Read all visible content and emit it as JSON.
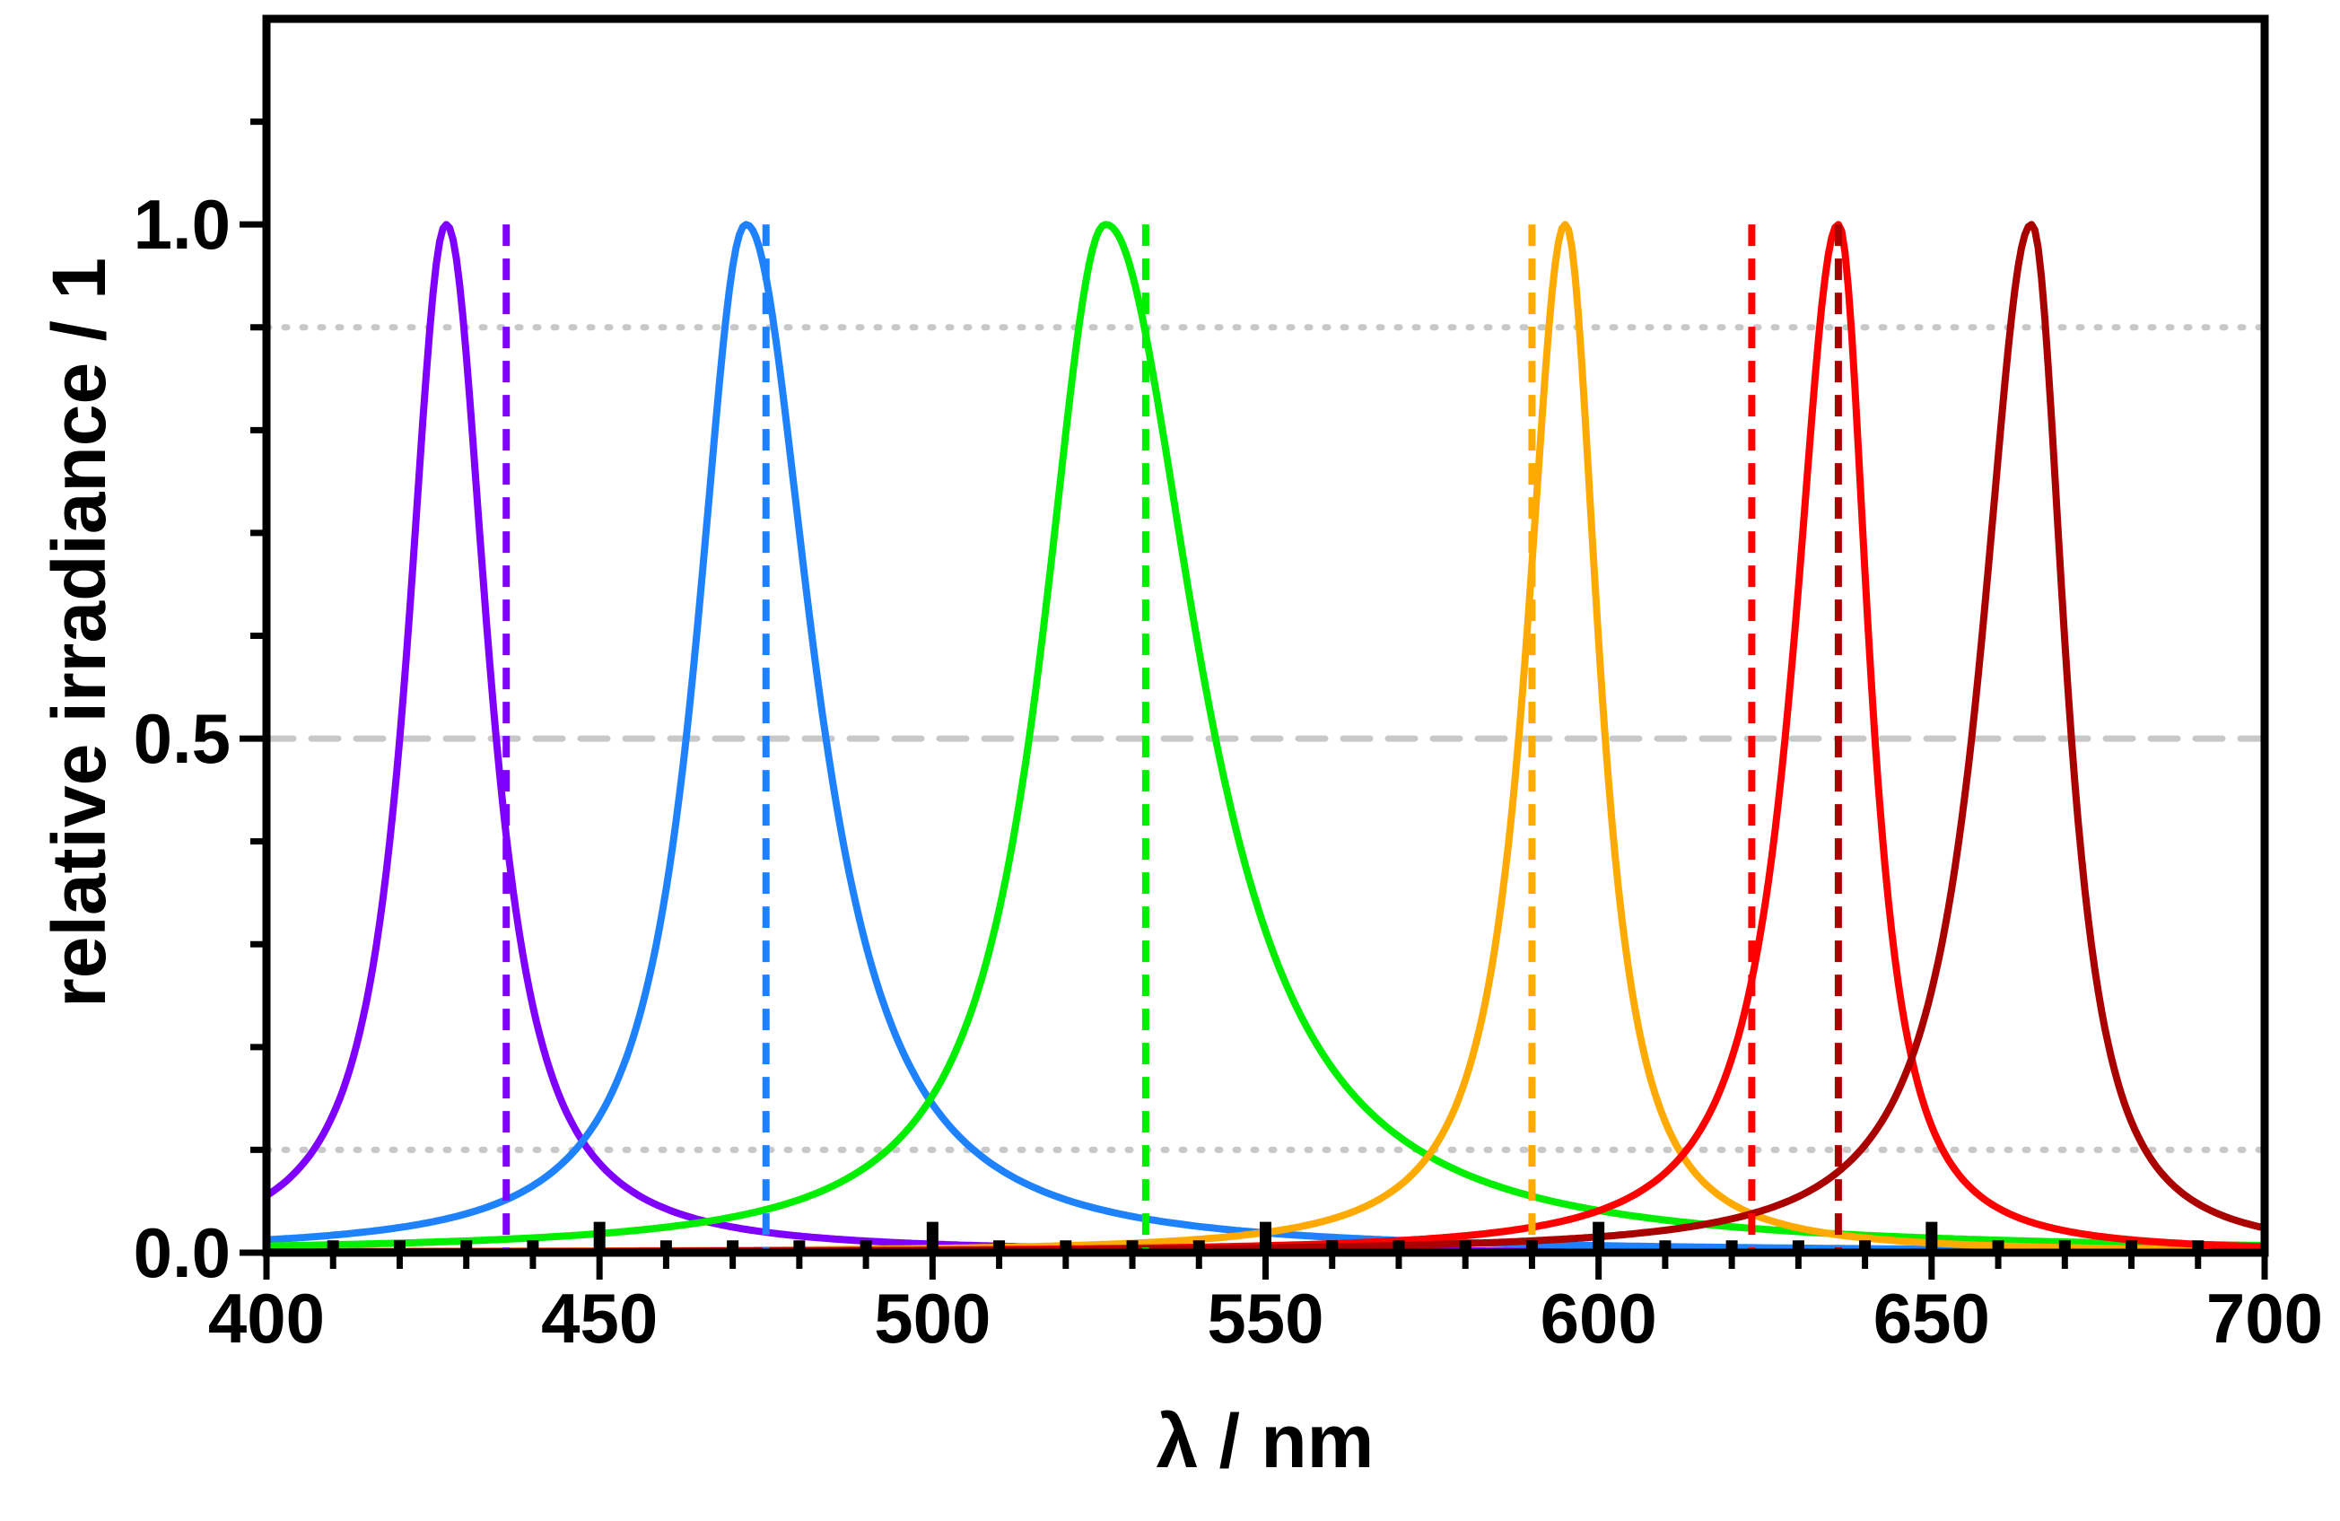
{
  "chart_data": {
    "type": "line",
    "title": "",
    "xlabel": "λ / nm",
    "ylabel": "relative irradiance / 1",
    "xlim": [
      400,
      700
    ],
    "ylim": [
      0,
      1.2
    ],
    "x_ticks": [
      "400",
      "450",
      "500",
      "550",
      "600",
      "650",
      "700"
    ],
    "y_ticks": [
      "0.0",
      "0.5",
      "1.0"
    ],
    "grid": false,
    "reference_lines": [
      {
        "y": 0.5,
        "style": "dashed",
        "color": "#c8c8c8"
      },
      {
        "y": 0.9,
        "style": "dotted",
        "color": "#c8c8c8"
      },
      {
        "y": 0.1,
        "style": "dotted",
        "color": "#c8c8c8"
      }
    ],
    "series": [
      {
        "name": "violet",
        "color": "#7f00ff",
        "peak_nm": 427,
        "fwhm_left_nm": 14,
        "fwhm_right_nm": 15,
        "marker_nm": 436
      },
      {
        "name": "blue",
        "color": "#1e82ff",
        "peak_nm": 472,
        "fwhm_left_nm": 18,
        "fwhm_right_nm": 24,
        "marker_nm": 475
      },
      {
        "name": "green",
        "color": "#00ee00",
        "peak_nm": 526,
        "fwhm_left_nm": 23,
        "fwhm_right_nm": 33,
        "marker_nm": 532
      },
      {
        "name": "orange",
        "color": "#ffaa00",
        "peak_nm": 595,
        "fwhm_left_nm": 14,
        "fwhm_right_nm": 12,
        "marker_nm": 590
      },
      {
        "name": "red",
        "color": "#ff0000",
        "peak_nm": 636,
        "fwhm_left_nm": 16,
        "fwhm_right_nm": 11,
        "marker_nm": 623
      },
      {
        "name": "dark red",
        "color": "#aa0000",
        "peak_nm": 665,
        "fwhm_left_nm": 18,
        "fwhm_right_nm": 12,
        "marker_nm": 636
      }
    ],
    "spectral_line_markers": [
      {
        "x": 410,
        "y": 0.012
      },
      {
        "x": 420,
        "y": 0.012
      },
      {
        "x": 430,
        "y": 0.012
      },
      {
        "x": 440,
        "y": 0.012
      },
      {
        "x": 450,
        "y": 0.03
      },
      {
        "x": 460,
        "y": 0.012
      },
      {
        "x": 470,
        "y": 0.012
      },
      {
        "x": 480,
        "y": 0.012
      },
      {
        "x": 490,
        "y": 0.012
      },
      {
        "x": 500,
        "y": 0.03
      },
      {
        "x": 510,
        "y": 0.012
      },
      {
        "x": 520,
        "y": 0.012
      },
      {
        "x": 530,
        "y": 0.012
      },
      {
        "x": 540,
        "y": 0.012
      },
      {
        "x": 550,
        "y": 0.03
      },
      {
        "x": 560,
        "y": 0.012
      },
      {
        "x": 570,
        "y": 0.012
      },
      {
        "x": 580,
        "y": 0.012
      },
      {
        "x": 590,
        "y": 0.012
      },
      {
        "x": 600,
        "y": 0.03
      },
      {
        "x": 610,
        "y": 0.012
      },
      {
        "x": 620,
        "y": 0.012
      },
      {
        "x": 630,
        "y": 0.012
      },
      {
        "x": 640,
        "y": 0.012
      },
      {
        "x": 650,
        "y": 0.03
      },
      {
        "x": 660,
        "y": 0.012
      },
      {
        "x": 670,
        "y": 0.012
      },
      {
        "x": 680,
        "y": 0.012
      },
      {
        "x": 690,
        "y": 0.012
      }
    ]
  }
}
